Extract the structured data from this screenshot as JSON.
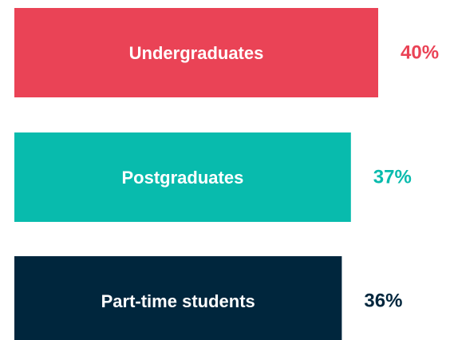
{
  "chart_data": {
    "type": "bar",
    "orientation": "horizontal",
    "categories": [
      "Undergraduates",
      "Postgraduates",
      "Part-time students"
    ],
    "values": [
      40,
      37,
      36
    ],
    "value_labels": [
      "40%",
      "37%",
      "36%"
    ],
    "colors": [
      "#ea4356",
      "#08bbad",
      "#00263d"
    ]
  }
}
